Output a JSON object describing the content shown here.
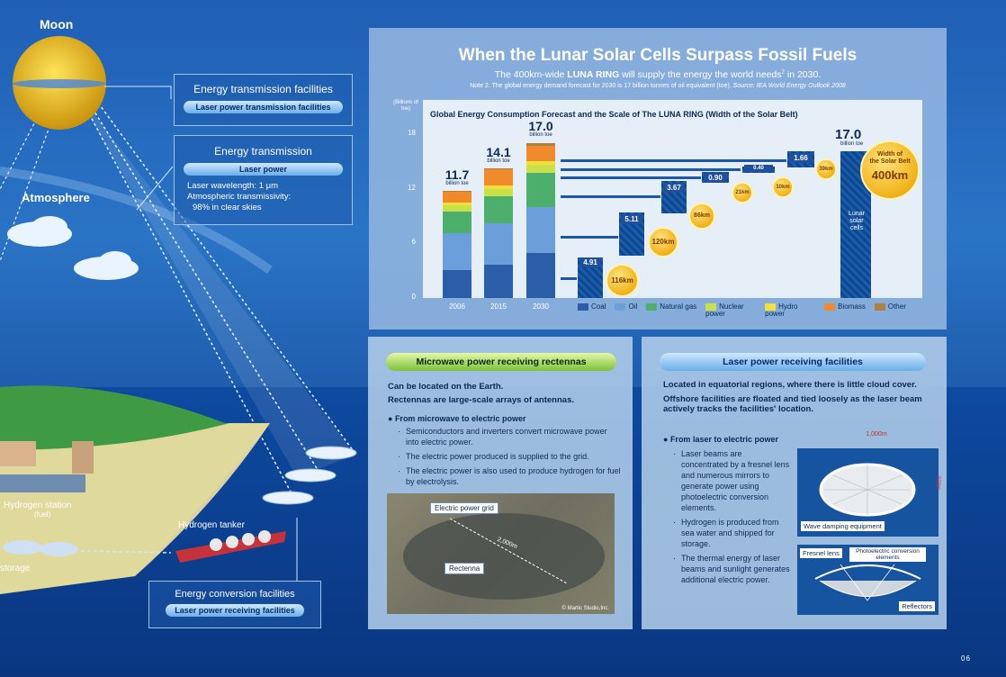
{
  "left": {
    "moon": "Moon",
    "atmosphere": "Atmosphere",
    "transmission_facilities": {
      "title": "Energy transmission facilities",
      "pill": "Laser power transmission facilities"
    },
    "energy_transmission": {
      "title": "Energy transmission",
      "pill": "Laser power",
      "bullets": [
        "Laser wavelength: 1 μm",
        "Atmospheric transmissivity:",
        "98% in clear skies"
      ]
    },
    "hydrogen_station": "Hydrogen station",
    "hydrogen_station_sub": "(fuel)",
    "hydrogen_tanker": "Hydrogen tanker",
    "storage": "storage",
    "conversion": {
      "title": "Energy conversion facilities",
      "pill": "Laser power receiving facilities"
    }
  },
  "top_panel": {
    "title": "When the Lunar Solar Cells Surpass Fossil Fuels",
    "subtitle_a": "The 400km-wide ",
    "subtitle_b": "LUNA RING",
    "subtitle_c": " will supply the energy the world needs",
    "subtitle_sup": "2",
    "subtitle_d": " in 2030.",
    "note": "Note 2. The global energy demand forecast for 2030 is 17 billion tonnes of oil equivalent (toe).",
    "source": "Source: IEA World Energy Outlook 2008"
  },
  "chart_data": {
    "type": "bar",
    "title": "Global Energy Consumption Forecast and the Scale of The LUNA RING (Width of the Solar Belt)",
    "ylabel": "(Billions of toe)",
    "ylim": [
      0,
      18
    ],
    "yticks": [
      "18",
      "12",
      "6",
      "0"
    ],
    "categories": [
      "2006",
      "2015",
      "2030"
    ],
    "totals": [
      "11.7",
      "14.1",
      "17.0"
    ],
    "unit": "billion toe",
    "series": [
      {
        "name": "Coal",
        "color": "#2b5ea8",
        "values": [
          3.1,
          3.7,
          4.9
        ]
      },
      {
        "name": "Oil",
        "color": "#6b9fdc",
        "values": [
          4.0,
          4.5,
          5.1
        ]
      },
      {
        "name": "Natural gas",
        "color": "#4caf6b",
        "values": [
          2.4,
          3.0,
          3.7
        ]
      },
      {
        "name": "Nuclear power",
        "color": "#c8e04a",
        "values": [
          0.7,
          0.8,
          0.9
        ]
      },
      {
        "name": "Hydro power",
        "color": "#f2df3a",
        "values": [
          0.3,
          0.4,
          0.4
        ]
      },
      {
        "name": "Biomass",
        "color": "#f08a2a",
        "values": [
          1.2,
          1.7,
          1.7
        ]
      },
      {
        "name": "Other",
        "color": "#b08040",
        "values": [
          0.05,
          0.1,
          0.3
        ]
      }
    ],
    "breakdown": [
      {
        "value": "4.91",
        "width": "116km"
      },
      {
        "value": "5.11",
        "width": "120km"
      },
      {
        "value": "3.67",
        "width": "86km"
      },
      {
        "value": "0.90",
        "width": "21km"
      },
      {
        "value": "0.40",
        "width": "10km"
      },
      {
        "value": "1.66",
        "width": "39km"
      }
    ],
    "lunar": {
      "total": "17.0",
      "unit": "billion toe",
      "label1": "Width of",
      "label2": "the Solar Belt",
      "width": "400km",
      "cells": "Lunar solar cells"
    }
  },
  "microwave": {
    "pill": "Microwave power receiving rectennas",
    "line1": "Can be located on the Earth.",
    "line2": "Rectennas are large-scale arrays of antennas.",
    "head": "From microwave to electric power",
    "bullets": [
      "Semiconductors and inverters convert microwave power into electric power.",
      "The electric power produced is supplied to the grid.",
      "The electric power is also used to produce hydrogen for fuel by electrolysis."
    ],
    "photo_grid": "Electric power grid",
    "photo_rect": "Rectenna",
    "photo_dist": "2,000m",
    "photo_credit": "© Martic Studio,Inc."
  },
  "laser": {
    "pill": "Laser power receiving facilities",
    "line1": "Located in equatorial regions, where there is little cloud cover.",
    "line2": "Offshore facilities are floated and tied loosely as the laser beam actively tracks the facilities' location.",
    "head": "From laser to electric power",
    "bullets": [
      "Laser beams are concentrated by a fresnel lens and numerous mirrors to generate power using photoelectric conversion elements.",
      "Hydrogen is produced from sea water and shipped for storage.",
      "The thermal energy of laser beams and sunlight generates additional electric power."
    ],
    "dim1": "1,000m",
    "dim2": "500m",
    "wave": "Wave damping equipment",
    "fresnel": "Fresnel lens",
    "photoel": "Photoelectric conversion elements",
    "reflectors": "Reflectors"
  },
  "page_number": "06"
}
